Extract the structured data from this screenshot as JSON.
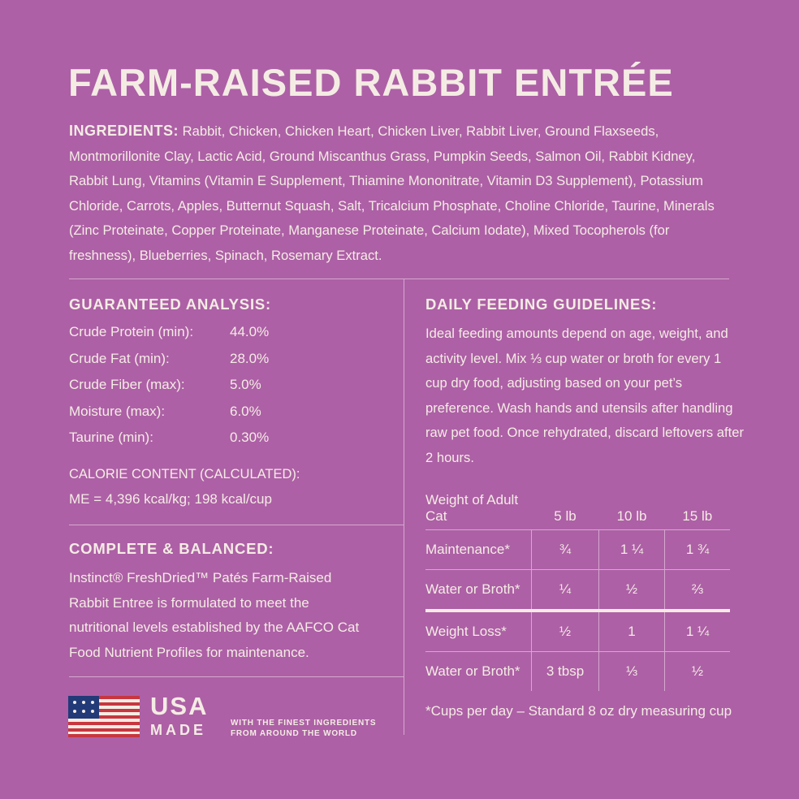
{
  "title": "FARM-RAISED RABBIT ENTRÉE",
  "ingredients": {
    "label": "INGREDIENTS:",
    "text": "Rabbit, Chicken, Chicken Heart, Chicken Liver, Rabbit Liver, Ground Flaxseeds, Montmorillonite Clay, Lactic Acid, Ground Miscanthus Grass, Pumpkin Seeds, Salmon Oil, Rabbit Kidney, Rabbit Lung, Vitamins (Vitamin E Supplement, Thiamine Mononitrate, Vitamin D3 Supplement), Potassium Chloride, Carrots, Apples, Butternut Squash, Salt, Tricalcium Phosphate, Choline Chloride, Taurine, Minerals (Zinc Proteinate, Copper Proteinate, Manganese Proteinate, Calcium Iodate), Mixed Tocopherols (for freshness), Blueberries, Spinach, Rosemary Extract."
  },
  "analysis": {
    "heading": "GUARANTEED ANALYSIS:",
    "rows": [
      [
        "Crude Protein (min):",
        "44.0%"
      ],
      [
        "Crude Fat (min):",
        "28.0%"
      ],
      [
        "Crude Fiber (max):",
        "5.0%"
      ],
      [
        "Moisture (max):",
        "6.0%"
      ],
      [
        "Taurine (min):",
        "0.30%"
      ]
    ]
  },
  "calorie": {
    "heading": "CALORIE CONTENT (CALCULATED):",
    "text": "ME = 4,396 kcal/kg; 198 kcal/cup"
  },
  "complete": {
    "heading": "COMPLETE & BALANCED:",
    "text": "Instinct® FreshDried™ Patés Farm-Raised Rabbit Entree is formulated to meet the nutritional levels established by the AAFCO Cat Food Nutrient Profiles for maintenance."
  },
  "usa": {
    "word1": "USA",
    "word2": "MADE",
    "tagline": [
      "WITH THE FINEST INGREDIENTS",
      "FROM AROUND THE WORLD"
    ]
  },
  "feeding": {
    "heading": "DAILY FEEDING GUIDELINES:",
    "text": "Ideal feeding amounts depend on age, weight, and activity level. Mix ⅓ cup water or broth for every 1 cup dry food, adjusting based on your pet’s preference. Wash hands and utensils after handling raw pet food. Once rehydrated, discard leftovers after 2 hours."
  },
  "table": {
    "header": [
      "Weight of Adult Cat",
      "5 lb",
      "10 lb",
      "15 lb"
    ],
    "rows": [
      [
        "Maintenance*",
        "¾",
        "1 ¼",
        "1 ¾"
      ],
      [
        "Water or Broth*",
        "¼",
        "½",
        "⅔"
      ],
      [
        "Weight Loss*",
        "½",
        "1",
        "1 ¼"
      ],
      [
        "Water or Broth*",
        "3 tbsp",
        "⅓",
        "½"
      ]
    ]
  },
  "footnote": "*Cups per day – Standard 8 oz dry measuring cup"
}
